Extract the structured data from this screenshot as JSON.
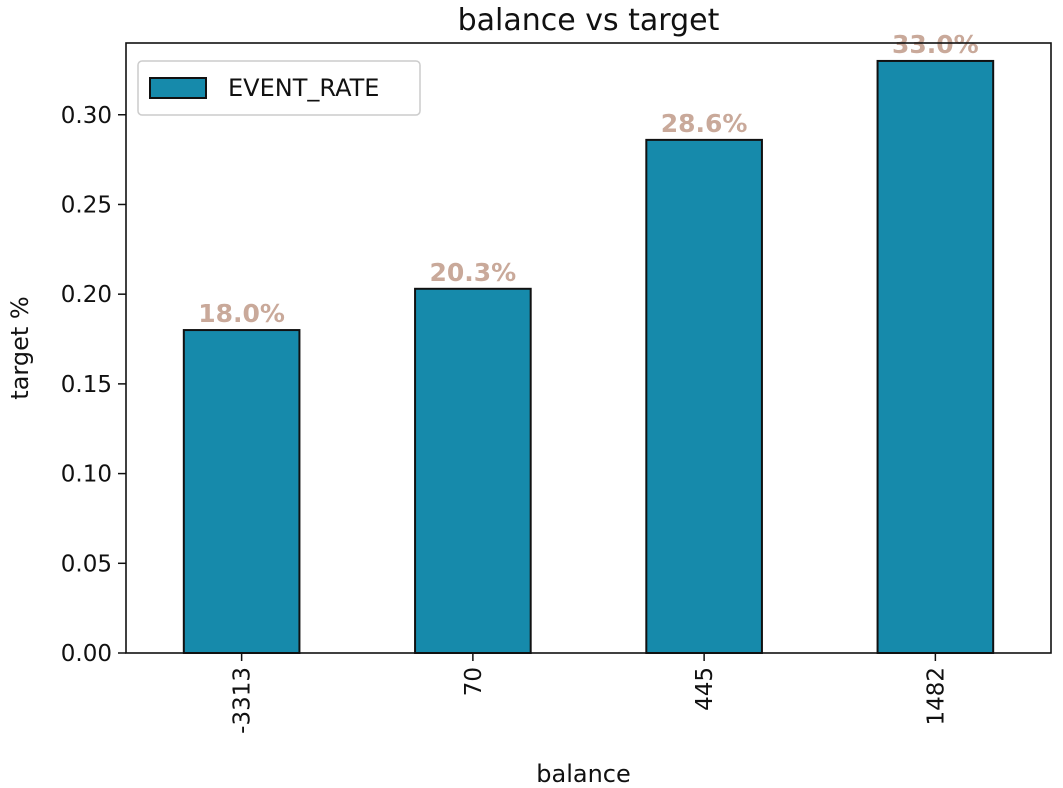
{
  "chart_data": {
    "type": "bar",
    "title": "balance vs target",
    "xlabel": "balance",
    "ylabel": "target %",
    "categories": [
      "-3313",
      "70",
      "445",
      "1482"
    ],
    "series": [
      {
        "name": "EVENT_RATE",
        "values": [
          0.18,
          0.203,
          0.286,
          0.33
        ]
      }
    ],
    "data_labels": [
      "18.0%",
      "20.3%",
      "28.6%",
      "33.0%"
    ],
    "ylim": [
      0.0,
      0.34
    ],
    "yticks": [
      0.0,
      0.05,
      0.1,
      0.15,
      0.2,
      0.25,
      0.3
    ],
    "ytick_labels": [
      "0.00",
      "0.05",
      "0.10",
      "0.15",
      "0.20",
      "0.25",
      "0.30"
    ],
    "xtick_rotation": "vertical",
    "grid": false,
    "legend_position": "top-left",
    "colors": {
      "bar_fill": "#168aab",
      "bar_edge": "#111111",
      "data_label": "#c9a99a",
      "axis": "#111111"
    }
  }
}
